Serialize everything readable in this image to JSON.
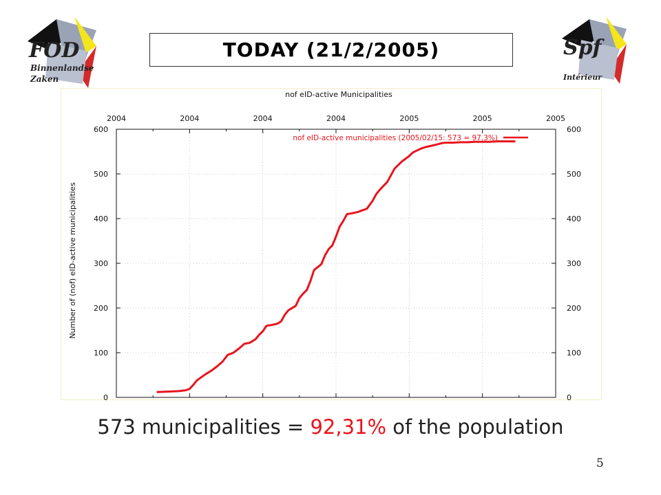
{
  "slide": {
    "title": "TODAY (21/2/2005)",
    "caption_prefix": "573 municipalities = ",
    "caption_highlight": "92,31%",
    "caption_suffix": " of the population",
    "page_number": "5",
    "highlight_color": "#e8141c"
  },
  "logo_left": {
    "line1": "FOD",
    "line2": "Binnenlandse",
    "line3": "Zaken"
  },
  "logo_right": {
    "line1": "Spf",
    "line2": "Intérieur"
  },
  "chart_data": {
    "type": "line",
    "title": "nof eID-active Municipalities",
    "ylabel": "Number of (nof) eID-active municipalities",
    "xlabel": "",
    "x_tick_labels": [
      "2004",
      "2004",
      "2004",
      "2004",
      "2005",
      "2005",
      "2005"
    ],
    "y_ticks": [
      0,
      100,
      200,
      300,
      400,
      500,
      600
    ],
    "ylim": [
      0,
      600
    ],
    "xlim": [
      0,
      6
    ],
    "grid": true,
    "legend_position": "top-right",
    "series": [
      {
        "name": "nof eID-active municipalities (2005/02/15: 573 = 97.3%)",
        "color": "#e8141c",
        "x": [
          0.55,
          0.7,
          0.85,
          0.95,
          1.0,
          1.05,
          1.1,
          1.15,
          1.22,
          1.3,
          1.38,
          1.45,
          1.52,
          1.6,
          1.68,
          1.75,
          1.82,
          1.9,
          1.95,
          2.0,
          2.05,
          2.12,
          2.2,
          2.25,
          2.3,
          2.35,
          2.45,
          2.5,
          2.55,
          2.6,
          2.65,
          2.7,
          2.8,
          2.85,
          2.9,
          2.95,
          3.0,
          3.05,
          3.1,
          3.15,
          3.22,
          3.3,
          3.35,
          3.42,
          3.5,
          3.55,
          3.6,
          3.7,
          3.8,
          3.9,
          4.0,
          4.05,
          4.1,
          4.15,
          4.22,
          4.3,
          4.38,
          4.45,
          4.5,
          4.6,
          4.7,
          4.8,
          4.9,
          5.0,
          5.1,
          5.2,
          5.3,
          5.45
        ],
        "values": [
          12,
          13,
          14,
          16,
          19,
          28,
          38,
          44,
          52,
          60,
          70,
          80,
          95,
          100,
          110,
          120,
          122,
          130,
          140,
          148,
          160,
          162,
          165,
          170,
          185,
          195,
          205,
          222,
          232,
          240,
          260,
          285,
          298,
          318,
          332,
          340,
          360,
          382,
          395,
          410,
          412,
          415,
          418,
          422,
          440,
          455,
          465,
          482,
          512,
          528,
          540,
          548,
          552,
          556,
          560,
          563,
          566,
          569,
          570,
          570,
          571,
          571,
          572,
          572,
          572,
          573,
          573,
          573
        ]
      }
    ]
  }
}
